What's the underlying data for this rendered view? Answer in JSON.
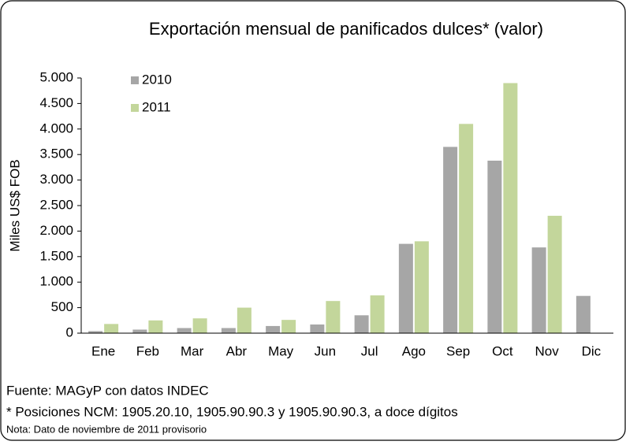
{
  "chart_data": {
    "type": "bar",
    "title": "Exportación mensual de panificados dulces* (valor)",
    "y_label": "Miles US$ FOB",
    "categories": [
      "Ene",
      "Feb",
      "Mar",
      "Abr",
      "May",
      "Jun",
      "Jul",
      "Ago",
      "Sep",
      "Oct",
      "Nov",
      "Dic"
    ],
    "series": [
      {
        "name": "2010",
        "color": "#a6a6a6",
        "values": [
          40,
          70,
          100,
          100,
          140,
          170,
          350,
          1750,
          3650,
          3380,
          1680,
          730
        ]
      },
      {
        "name": "2011",
        "color": "#c3d69b",
        "values": [
          180,
          250,
          290,
          500,
          260,
          630,
          740,
          1800,
          4100,
          4900,
          2300,
          null
        ]
      }
    ],
    "ylim": [
      0,
      5000
    ],
    "yticks": [
      0,
      500,
      {
        "value": 1000,
        "label": "1.000"
      },
      {
        "value": 1500,
        "label": "1.500"
      },
      {
        "value": 2000,
        "label": "2.000"
      },
      {
        "value": 2500,
        "label": "2.500"
      },
      {
        "value": 3000,
        "label": "3.000"
      },
      {
        "value": 3500,
        "label": "3.500"
      },
      {
        "value": 4000,
        "label": "4.000"
      },
      {
        "value": 4500,
        "label": "4.500"
      },
      {
        "value": 5000,
        "label": "5.000"
      }
    ],
    "notes": [
      "Fuente: MAGyP con datos INDEC",
      "* Posiciones NCM:  1905.20.10, 1905.90.90.3 y 1905.90.90.3, a doce dígitos",
      "Nota: Dato de noviembre de 2011 provisorio"
    ]
  }
}
